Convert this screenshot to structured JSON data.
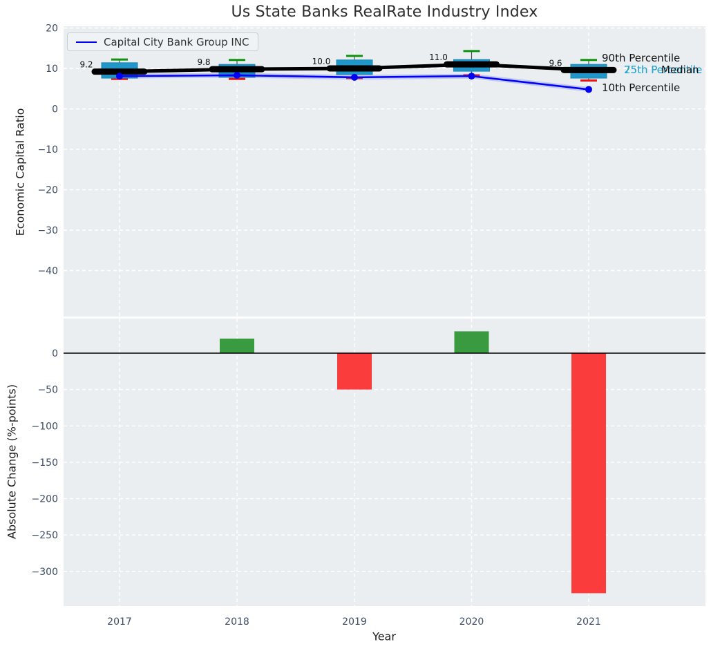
{
  "chart_data": {
    "type": "combo",
    "panel_types": [
      "boxplot+line",
      "bar"
    ],
    "title": "Us State Banks RealRate Industry Index",
    "xlabel": "Year",
    "categories": [
      "2017",
      "2018",
      "2019",
      "2020",
      "2021"
    ],
    "top": {
      "ylabel": "Economic Capital Ratio",
      "ylim": [
        -51.5,
        20.5
      ],
      "yticks": [
        20,
        10,
        0,
        -10,
        -20,
        -30,
        -40
      ],
      "grid": true,
      "percentiles": {
        "p90": [
          12.2,
          12.1,
          13.1,
          14.3,
          12.1
        ],
        "p75": [
          11.4,
          11.0,
          12.1,
          12.2,
          11.0
        ],
        "median": [
          9.2,
          9.8,
          10.0,
          11.0,
          9.6
        ],
        "p25": [
          7.6,
          7.8,
          8.5,
          9.3,
          7.6
        ],
        "p10": [
          7.4,
          7.4,
          7.6,
          8.3,
          7.0
        ]
      },
      "median_labels": [
        "9.2",
        "9.8",
        "10.0",
        "11.0",
        "9.6"
      ],
      "company": {
        "name": "Capital City Bank Group INC",
        "values": [
          8.1,
          8.3,
          7.8,
          8.1,
          4.8
        ]
      },
      "annotations": [
        {
          "label": "90th Percentile",
          "color": "#111111"
        },
        {
          "label": "75th Percentile",
          "color": "#29a3ce"
        },
        {
          "label": "Median",
          "color": "#111111"
        },
        {
          "label": "25th Percentile",
          "color": "#29a3ce"
        },
        {
          "label": "10th Percentile",
          "color": "#111111"
        }
      ]
    },
    "bottom": {
      "ylabel": "Absolute Change (%-points)",
      "ylim": [
        -348,
        48
      ],
      "yticks": [
        0,
        -50,
        -100,
        -150,
        -200,
        -250,
        -300
      ],
      "grid": true,
      "values": [
        null,
        20,
        -50,
        30,
        -330
      ]
    },
    "colors": {
      "box_fill": "#2196c8",
      "box_edge": "#1b85b3",
      "median_line": "#000000",
      "whisker": "#4a4a4a",
      "cap_top": "#0f930f",
      "cap_bottom": "#ed1212",
      "company_line": "#0202f2",
      "bar_positive": "#3a9a40",
      "bar_negative": "#fb3c3c",
      "plot_bg": "#eaeef1",
      "grid_line": "#ffffff",
      "tick_color": "#3d4c63",
      "zero_line": "#000000"
    }
  }
}
